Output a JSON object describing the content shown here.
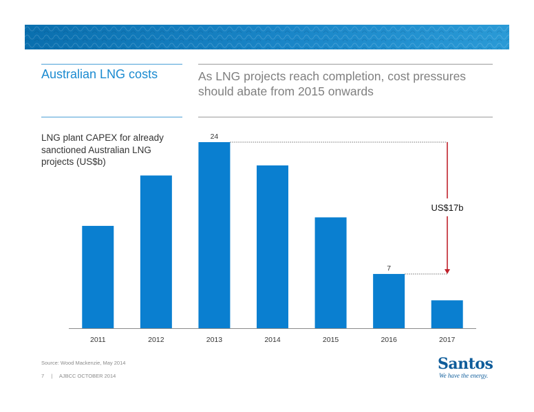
{
  "header": {
    "left_title": "Australian LNG costs",
    "right_title": "As LNG projects reach completion, cost pressures should abate from 2015 onwards"
  },
  "chart_desc": "LNG plant CAPEX for already sanctioned Australian LNG projects (US$b)",
  "chart_data": {
    "type": "bar",
    "categories": [
      "2011",
      "2012",
      "2013",
      "2014",
      "2015",
      "2016",
      "2017"
    ],
    "values": [
      13.2,
      19.7,
      24,
      21,
      14.3,
      7,
      3.6
    ],
    "data_labels": {
      "2013": "24",
      "2016": "7"
    },
    "annotation": {
      "text": "US$17b",
      "from_category": "2013",
      "to_category": "2016"
    },
    "ylim": [
      0,
      24
    ],
    "grid": false,
    "legend": "none",
    "bar_color": "#0a7fd0",
    "annotation_color": "#c0202a"
  },
  "footer": {
    "source": "Source: Wood Mackenzie, May 2014",
    "page": "7",
    "separator": "|",
    "event": "AJBCC OCTOBER 2014"
  },
  "logo": {
    "name": "Santos",
    "tagline": "We have the energy."
  }
}
